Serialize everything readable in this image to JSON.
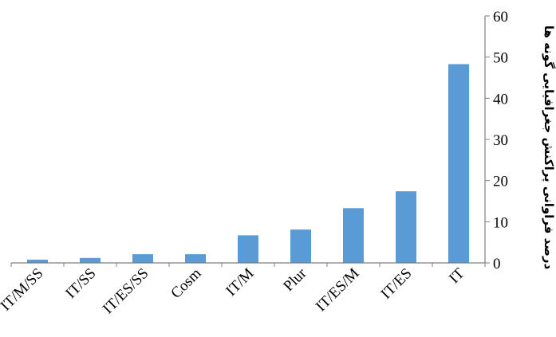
{
  "chart_data": {
    "type": "bar",
    "categories": [
      "IT/M/SS",
      "IT/SS",
      "IT/ES/SS",
      "Cosm",
      "IT/M",
      "Plur",
      "IT/ES/M",
      "IT/ES",
      "IT"
    ],
    "values": [
      0.8,
      1.2,
      2.1,
      2.1,
      6.7,
      8.1,
      13.3,
      17.4,
      48.3
    ],
    "ylabel": "درصد فراوانی پراکنش جغرافیایی گونه ها",
    "ylim": [
      0,
      60
    ],
    "yticks": [
      0,
      10,
      20,
      30,
      40,
      50,
      60
    ],
    "y_axis_side": "right",
    "grid": false,
    "legend": "none",
    "colors": {
      "bar": "#5b9bd5",
      "axis": "#7f7f7f"
    }
  }
}
